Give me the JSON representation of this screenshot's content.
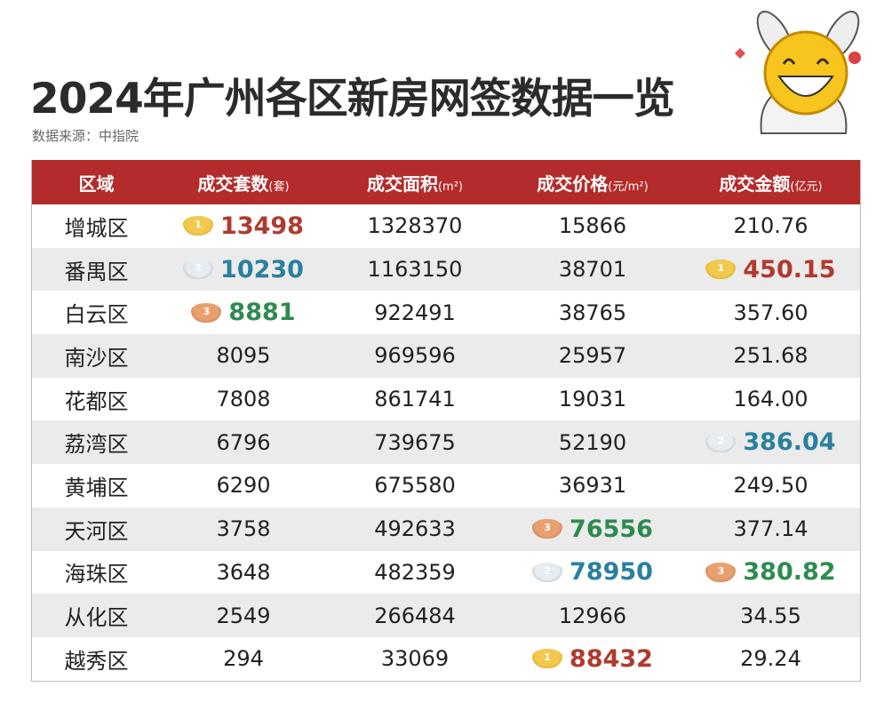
{
  "header": {
    "title": "2024年广州各区新房网签数据一览",
    "source": "数据来源：中指院"
  },
  "table": {
    "columns": [
      {
        "label": "区域"
      },
      {
        "label": "成交套数",
        "unit": "(套)"
      },
      {
        "label": "成交面积",
        "unit": "(m²)"
      },
      {
        "label": "成交价格",
        "unit": "(元/m²)"
      },
      {
        "label": "成交金额",
        "unit": "(亿元)"
      }
    ],
    "rows": [
      [
        "增城区",
        {
          "text": "13498",
          "medal": 1
        },
        "1328370",
        "15866",
        "210.76"
      ],
      [
        "番禺区",
        {
          "text": "10230",
          "medal": 2
        },
        "1163150",
        "38701",
        {
          "text": "450.15",
          "medal": 1
        }
      ],
      [
        "白云区",
        {
          "text": "8881",
          "medal": 3
        },
        "922491",
        "38765",
        "357.60"
      ],
      [
        "南沙区",
        "8095",
        "969596",
        "25957",
        "251.68"
      ],
      [
        "花都区",
        "7808",
        "861741",
        "19031",
        "164.00"
      ],
      [
        "荔湾区",
        "6796",
        "739675",
        "52190",
        {
          "text": "386.04",
          "medal": 2
        }
      ],
      [
        "黄埔区",
        "6290",
        "675580",
        "36931",
        "249.50"
      ],
      [
        "天河区",
        "3758",
        "492633",
        {
          "text": "76556",
          "medal": 3
        },
        "377.14"
      ],
      [
        "海珠区",
        "3648",
        "482359",
        {
          "text": "78950",
          "medal": 2
        },
        {
          "text": "380.82",
          "medal": 3
        }
      ],
      [
        "从化区",
        "2549",
        "266484",
        "12966",
        "34.55"
      ],
      [
        "越秀区",
        "294",
        "33069",
        {
          "text": "88432",
          "medal": 1
        },
        "29.24"
      ]
    ]
  }
}
